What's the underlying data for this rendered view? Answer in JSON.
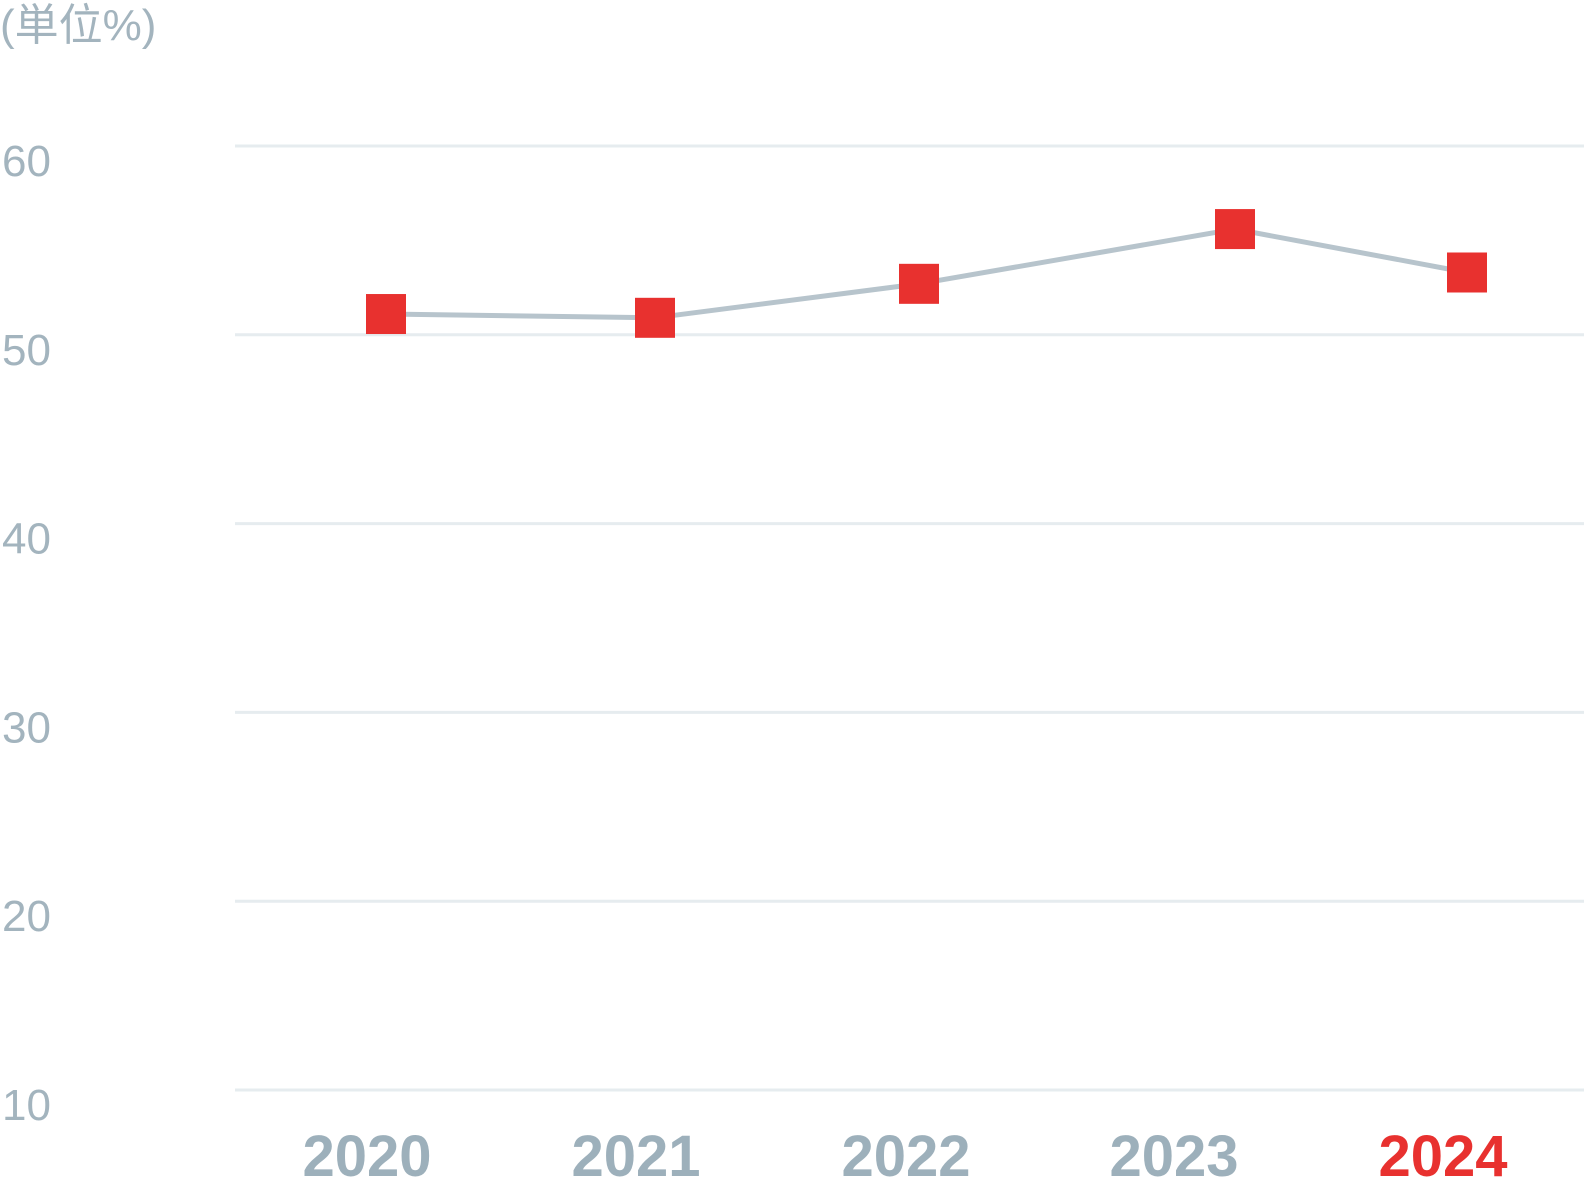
{
  "chart_data": {
    "type": "line",
    "unit_label": "(単位%)",
    "categories": [
      "2020",
      "2021",
      "2022",
      "2023",
      "2024"
    ],
    "series": [
      {
        "values": [
          51.1,
          50.9,
          52.7,
          55.6,
          53.3
        ]
      }
    ],
    "ylim": [
      10,
      60
    ],
    "yticks": [
      "60",
      "50",
      "40",
      "30",
      "20",
      "10"
    ],
    "grid": true,
    "highlight_category": "2024",
    "colors": {
      "marker": "#e8312f",
      "line": "#b7c4cc",
      "grid": "#e6ecef",
      "tick_text": "#a3b4be",
      "xtick_text": "#9db0bb",
      "highlight_text": "#e8312f"
    }
  }
}
